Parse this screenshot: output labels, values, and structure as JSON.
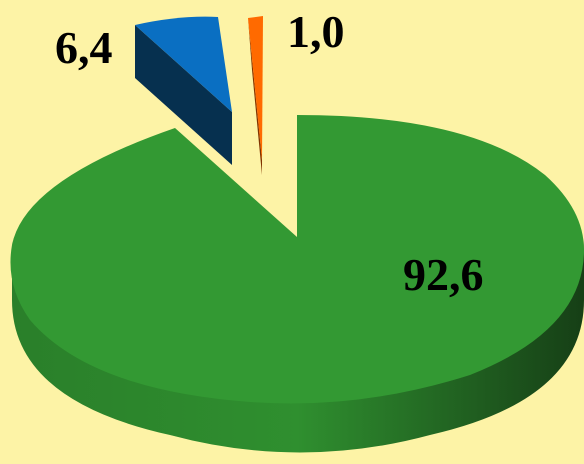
{
  "chart_data": {
    "type": "pie",
    "style": "3d-exploded",
    "slices": [
      {
        "label": "92,6",
        "value": 92.6,
        "color": "#339933",
        "dark": "#1f5c1f"
      },
      {
        "label": "6,4",
        "value": 6.4,
        "color": "#0a6fc2",
        "dark": "#06304f"
      },
      {
        "label": "1,0",
        "value": 1.0,
        "color": "#ff6a00",
        "dark": "#803300"
      }
    ],
    "background": "#fdf3a6"
  }
}
